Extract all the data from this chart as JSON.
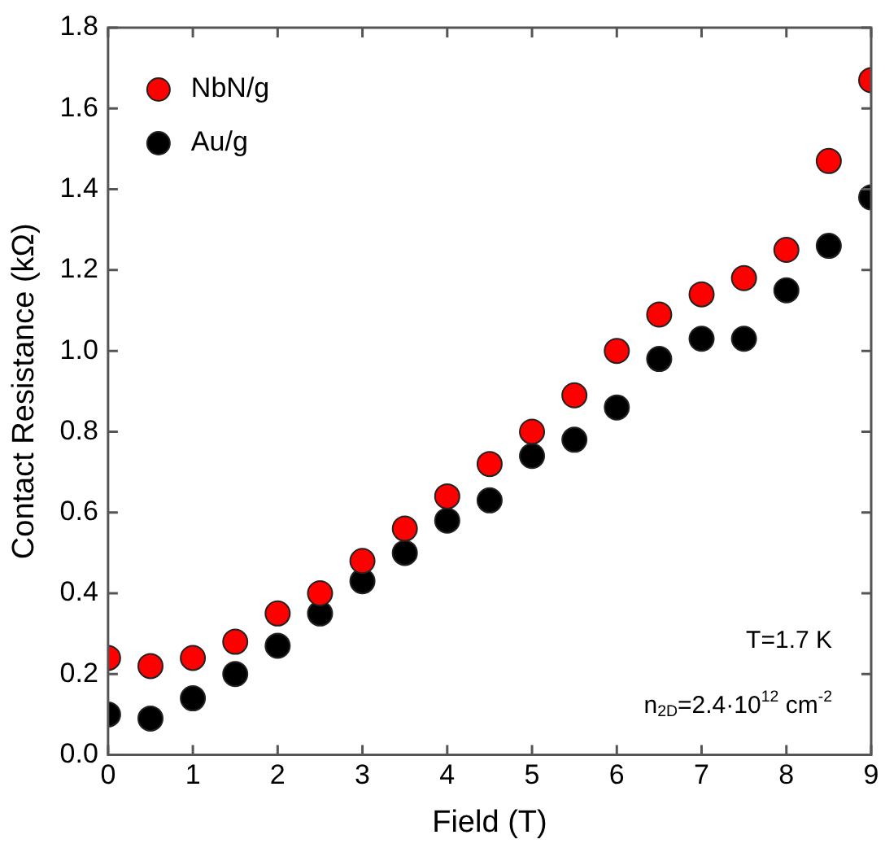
{
  "chart_data": {
    "type": "scatter",
    "xlabel": "Field (T)",
    "ylabel": "Contact Resistance (kΩ)",
    "x": [
      0,
      0.5,
      1,
      1.5,
      2,
      2.5,
      3,
      3.5,
      4,
      4.5,
      5,
      5.5,
      6,
      6.5,
      7,
      7.5,
      8,
      8.5,
      9
    ],
    "series": [
      {
        "name": "NbN/g",
        "color": "#ff0000",
        "values": [
          0.24,
          0.22,
          0.24,
          0.28,
          0.35,
          0.4,
          0.48,
          0.56,
          0.64,
          0.72,
          0.8,
          0.89,
          1.0,
          1.09,
          1.14,
          1.18,
          1.25,
          1.47,
          1.67
        ]
      },
      {
        "name": "Au/g",
        "color": "#000000",
        "values": [
          0.1,
          0.09,
          0.14,
          0.2,
          0.27,
          0.35,
          0.43,
          0.5,
          0.58,
          0.63,
          0.74,
          0.78,
          0.86,
          0.98,
          1.03,
          1.03,
          1.15,
          1.26,
          1.38
        ]
      }
    ],
    "xlim": [
      0,
      9
    ],
    "xticks": [
      0,
      1,
      2,
      3,
      4,
      5,
      6,
      7,
      8,
      9
    ],
    "ylim": [
      0,
      1.8
    ],
    "yticks": [
      {
        "value": 0,
        "label": "0.0"
      },
      0.2,
      0.4,
      0.6,
      0.8,
      {
        "value": 1,
        "label": "1.0"
      },
      1.2,
      1.4,
      1.6,
      1.8
    ],
    "grid": false,
    "legend": "top left",
    "marker": "circle",
    "annotations": [
      "T=1.7 K",
      "n$_{2D}$=2.4·10$^{12}$ cm$^{-2}$"
    ]
  }
}
